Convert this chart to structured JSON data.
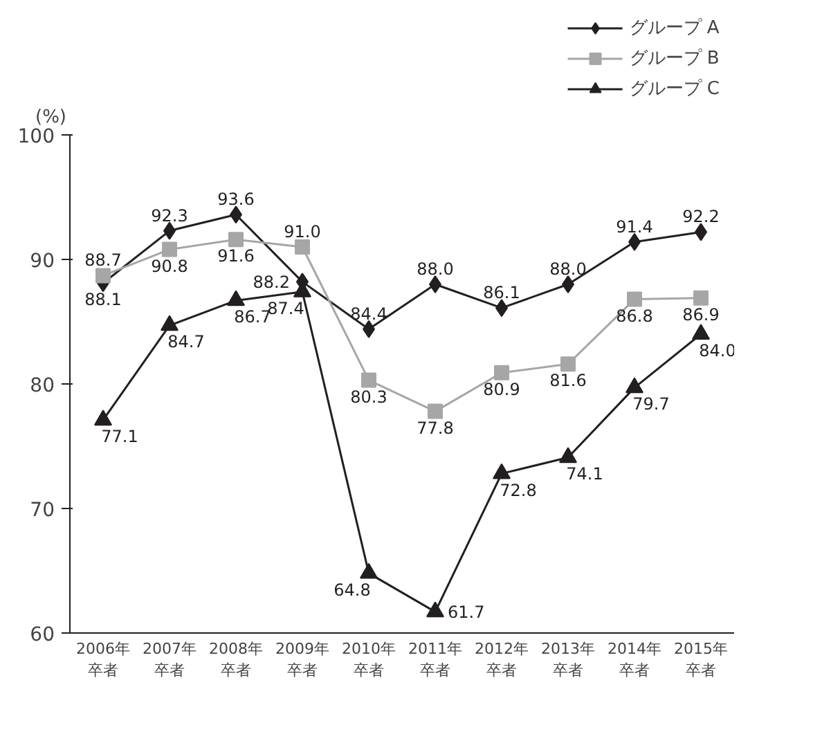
{
  "chart_data": {
    "type": "line",
    "ylabel": "(%)",
    "categories": [
      "2006年卒者",
      "2007年卒者",
      "2008年卒者",
      "2009年卒者",
      "2010年卒者",
      "2011年卒者",
      "2012年卒者",
      "2013年卒者",
      "2014年卒者",
      "2015年卒者"
    ],
    "series": [
      {
        "name": "グループ A",
        "color": "#231f20",
        "marker": "diamond",
        "values": [
          88.1,
          92.3,
          93.6,
          88.2,
          84.4,
          88.0,
          86.1,
          88.0,
          91.4,
          92.2
        ],
        "value_labels": [
          "88.1",
          "92.3",
          "93.6",
          "88.2",
          "84.4",
          "88.0",
          "86.1",
          "88.0",
          "91.4",
          "92.2"
        ]
      },
      {
        "name": "グループ B",
        "color": "#a6a6a6",
        "marker": "square",
        "values": [
          88.7,
          90.8,
          91.6,
          91.0,
          80.3,
          77.8,
          80.9,
          81.6,
          86.8,
          86.9
        ],
        "value_labels": [
          "88.7",
          "90.8",
          "91.6",
          "91.0",
          "80.3",
          "77.8",
          "80.9",
          "81.6",
          "86.8",
          "86.9"
        ]
      },
      {
        "name": "グループ C",
        "color": "#231f20",
        "marker": "triangle",
        "values": [
          77.1,
          84.7,
          86.7,
          87.4,
          64.8,
          61.7,
          72.8,
          74.1,
          79.7,
          84.0
        ],
        "value_labels": [
          "77.1",
          "84.7",
          "86.7",
          "87.4",
          "64.8",
          "61.7",
          "72.8",
          "74.1",
          "79.7",
          "84.0"
        ]
      }
    ],
    "ylim": [
      60,
      100
    ],
    "yticks": [
      60,
      70,
      80,
      90,
      100
    ],
    "grid": false,
    "legend": "top right"
  }
}
